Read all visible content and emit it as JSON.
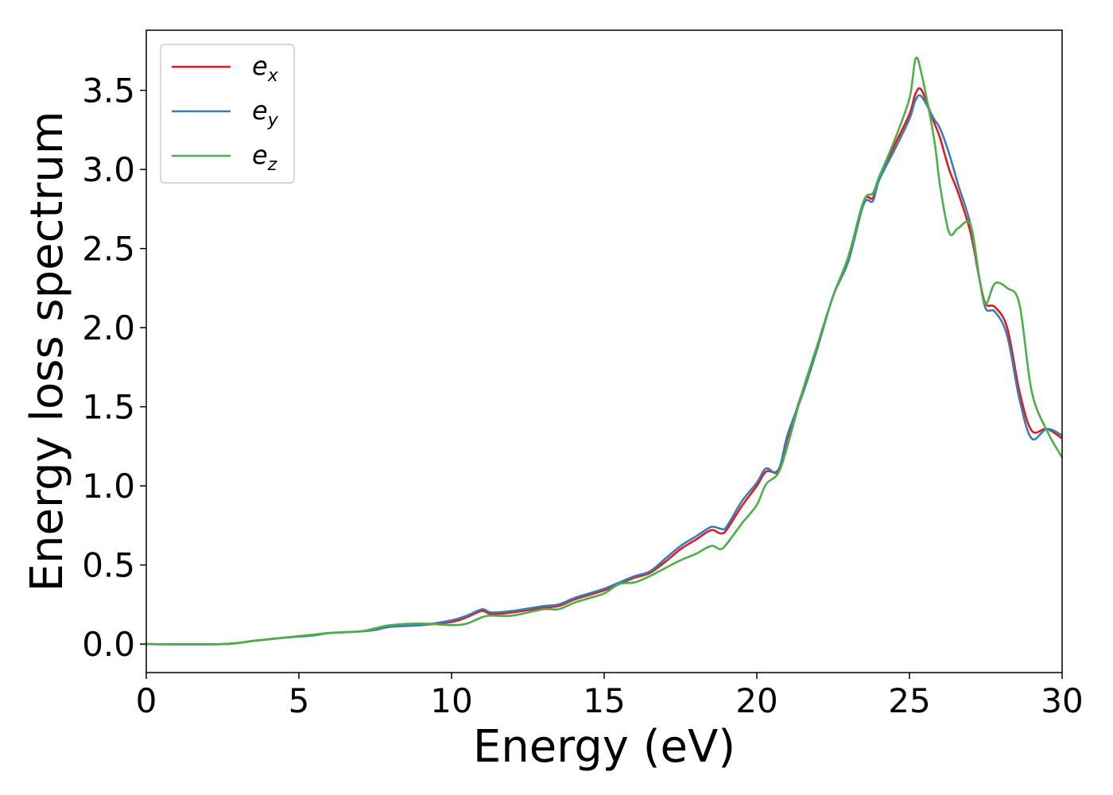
{
  "chart_data": {
    "type": "line",
    "xlabel": "Energy (eV)",
    "ylabel": "Energy loss spectrum",
    "xlim": [
      0,
      30
    ],
    "ylim": [
      -0.18,
      3.88
    ],
    "xticks": [
      0,
      5,
      10,
      15,
      20,
      25,
      30
    ],
    "xtick_labels": [
      "0",
      "5",
      "10",
      "15",
      "20",
      "25",
      "30"
    ],
    "yticks": [
      0.0,
      0.5,
      1.0,
      1.5,
      2.0,
      2.5,
      3.0,
      3.5
    ],
    "ytick_labels": [
      "0.0",
      "0.5",
      "1.0",
      "1.5",
      "2.0",
      "2.5",
      "3.0",
      "3.5"
    ],
    "grid": false,
    "legend_position": "top-left",
    "series": [
      {
        "name": "e_x",
        "label_main": "e",
        "label_sub": "x",
        "color": "#e41a1c",
        "x": [
          0,
          2.5,
          3.5,
          4.5,
          5.5,
          6.0,
          7.0,
          7.5,
          8.0,
          9.0,
          10.0,
          10.5,
          11.0,
          11.3,
          12.0,
          13.0,
          13.5,
          14.0,
          14.5,
          15.0,
          15.5,
          16.0,
          16.5,
          17.0,
          17.5,
          18.0,
          18.5,
          18.8,
          19.0,
          19.5,
          20.0,
          20.3,
          20.7,
          21.0,
          21.5,
          22.0,
          22.5,
          23.0,
          23.5,
          23.8,
          24.0,
          24.5,
          25.0,
          25.2,
          25.4,
          25.8,
          26.0,
          26.3,
          26.6,
          27.0,
          27.3,
          27.5,
          27.8,
          28.2,
          28.6,
          29.0,
          29.5,
          30.0
        ],
        "y": [
          0.0,
          0.0,
          0.02,
          0.04,
          0.06,
          0.07,
          0.08,
          0.09,
          0.11,
          0.12,
          0.14,
          0.17,
          0.21,
          0.19,
          0.2,
          0.23,
          0.24,
          0.28,
          0.31,
          0.34,
          0.38,
          0.42,
          0.45,
          0.52,
          0.6,
          0.66,
          0.72,
          0.7,
          0.72,
          0.87,
          1.0,
          1.09,
          1.1,
          1.3,
          1.6,
          1.9,
          2.2,
          2.45,
          2.8,
          2.82,
          2.95,
          3.15,
          3.35,
          3.48,
          3.5,
          3.3,
          3.2,
          3.0,
          2.85,
          2.6,
          2.3,
          2.15,
          2.13,
          2.0,
          1.6,
          1.35,
          1.36,
          1.3
        ]
      },
      {
        "name": "e_y",
        "label_main": "e",
        "label_sub": "y",
        "color": "#377eb8",
        "x": [
          0,
          2.5,
          3.5,
          4.5,
          5.5,
          6.0,
          7.0,
          7.5,
          8.0,
          9.0,
          10.0,
          10.5,
          11.0,
          11.3,
          12.0,
          13.0,
          13.5,
          14.0,
          14.5,
          15.0,
          15.5,
          16.0,
          16.5,
          17.0,
          17.5,
          18.0,
          18.5,
          18.8,
          19.0,
          19.5,
          20.0,
          20.3,
          20.7,
          21.0,
          21.5,
          22.0,
          22.5,
          23.0,
          23.5,
          23.8,
          24.0,
          24.5,
          25.0,
          25.2,
          25.4,
          25.8,
          26.0,
          26.3,
          26.6,
          27.0,
          27.3,
          27.5,
          27.8,
          28.2,
          28.6,
          29.0,
          29.5,
          30.0
        ],
        "y": [
          0.0,
          0.0,
          0.02,
          0.04,
          0.055,
          0.07,
          0.08,
          0.09,
          0.11,
          0.12,
          0.15,
          0.18,
          0.22,
          0.2,
          0.21,
          0.24,
          0.25,
          0.29,
          0.32,
          0.35,
          0.39,
          0.43,
          0.46,
          0.54,
          0.62,
          0.68,
          0.74,
          0.73,
          0.74,
          0.9,
          1.02,
          1.11,
          1.09,
          1.32,
          1.58,
          1.88,
          2.2,
          2.42,
          2.78,
          2.8,
          2.93,
          3.12,
          3.32,
          3.44,
          3.46,
          3.32,
          3.26,
          3.1,
          2.9,
          2.65,
          2.3,
          2.12,
          2.1,
          1.95,
          1.55,
          1.3,
          1.36,
          1.32
        ]
      },
      {
        "name": "e_z",
        "label_main": "e",
        "label_sub": "z",
        "color": "#4daf4a",
        "x": [
          0,
          2.5,
          3.5,
          4.5,
          5.5,
          6.0,
          7.0,
          7.5,
          8.0,
          9.0,
          10.0,
          10.5,
          11.0,
          11.3,
          12.0,
          13.0,
          13.5,
          14.0,
          14.5,
          15.0,
          15.5,
          16.0,
          16.5,
          17.0,
          17.5,
          18.0,
          18.5,
          18.8,
          19.0,
          19.5,
          20.0,
          20.3,
          20.7,
          21.0,
          21.5,
          22.0,
          22.5,
          23.0,
          23.5,
          23.8,
          24.0,
          24.5,
          25.0,
          25.2,
          25.4,
          25.8,
          26.0,
          26.3,
          26.6,
          27.0,
          27.3,
          27.5,
          27.8,
          28.2,
          28.6,
          29.0,
          29.5,
          30.0
        ],
        "y": [
          0.0,
          0.0,
          0.02,
          0.04,
          0.06,
          0.07,
          0.08,
          0.1,
          0.12,
          0.13,
          0.12,
          0.13,
          0.17,
          0.18,
          0.18,
          0.22,
          0.22,
          0.26,
          0.29,
          0.32,
          0.38,
          0.39,
          0.43,
          0.48,
          0.53,
          0.57,
          0.62,
          0.6,
          0.63,
          0.76,
          0.88,
          1.01,
          1.08,
          1.25,
          1.6,
          1.9,
          2.2,
          2.45,
          2.8,
          2.85,
          2.95,
          3.18,
          3.45,
          3.7,
          3.6,
          3.2,
          2.9,
          2.6,
          2.63,
          2.65,
          2.3,
          2.15,
          2.28,
          2.25,
          2.15,
          1.6,
          1.35,
          1.18
        ]
      }
    ]
  }
}
